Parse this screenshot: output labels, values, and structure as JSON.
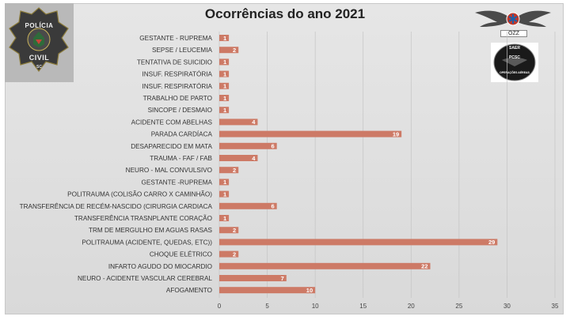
{
  "title": "Ocorrências do ano 2021",
  "badge": {
    "top_text": "POLÍCIA",
    "bottom_text": "CIVIL",
    "state_text": "SC"
  },
  "logos": {
    "ozz_label": "OZZ",
    "saer_top": "SAER",
    "saer_mid": "PCSC",
    "saer_bottom": "OPERAÇÕES AÉREAS"
  },
  "colors": {
    "bar": "#cd7a66",
    "background": "#e0e0e0",
    "value_label": "#ffffff"
  },
  "chart_data": {
    "type": "bar",
    "orientation": "horizontal",
    "title": "Ocorrências do ano 2021",
    "xlabel": "",
    "ylabel": "",
    "xlim": [
      0,
      35
    ],
    "xticks": [
      0,
      5,
      10,
      15,
      20,
      25,
      30,
      35
    ],
    "grid": "vertical",
    "legend": "none",
    "categories": [
      "GESTANTE - RUPREMA",
      "SEPSE / LEUCEMIA",
      "TENTATIVA DE SUICIDIO",
      "INSUF. RESPIRATÓRIA",
      "INSUF. RESPIRATÓRIA",
      "TRABALHO DE PARTO",
      "SINCOPE / DESMAIO",
      "ACIDENTE COM ABELHAS",
      "PARADA CARDÍACA",
      "DESAPARECIDO EM MATA",
      "TRAUMA - FAF / FAB",
      "NEURO - MAL CONVULSIVO",
      "GESTANTE -RUPREMA",
      "POLITRAUMA (COLISÃO CARRO X CAMINHÃO)",
      "TRANSFERÊNCIA DE RECÉM-NASCIDO (CIRURGIA CARDIACA",
      "TRANSFERÊNCIA TRASNPLANTE CORAÇÃO",
      "TRM DE MERGULHO EM AGUAS RASAS",
      "POLITRAUMA (ACIDENTE, QUEDAS, ETC))",
      "CHOQUE ELÉTRICO",
      "INFARTO AGUDO DO MIOCARDIO",
      "NEURO - ACIDENTE VASCULAR CEREBRAL",
      "AFOGAMENTO"
    ],
    "values": [
      1,
      2,
      1,
      1,
      1,
      1,
      1,
      4,
      19,
      6,
      4,
      2,
      1,
      1,
      6,
      1,
      2,
      29,
      2,
      22,
      7,
      10
    ],
    "data_labels": true
  }
}
